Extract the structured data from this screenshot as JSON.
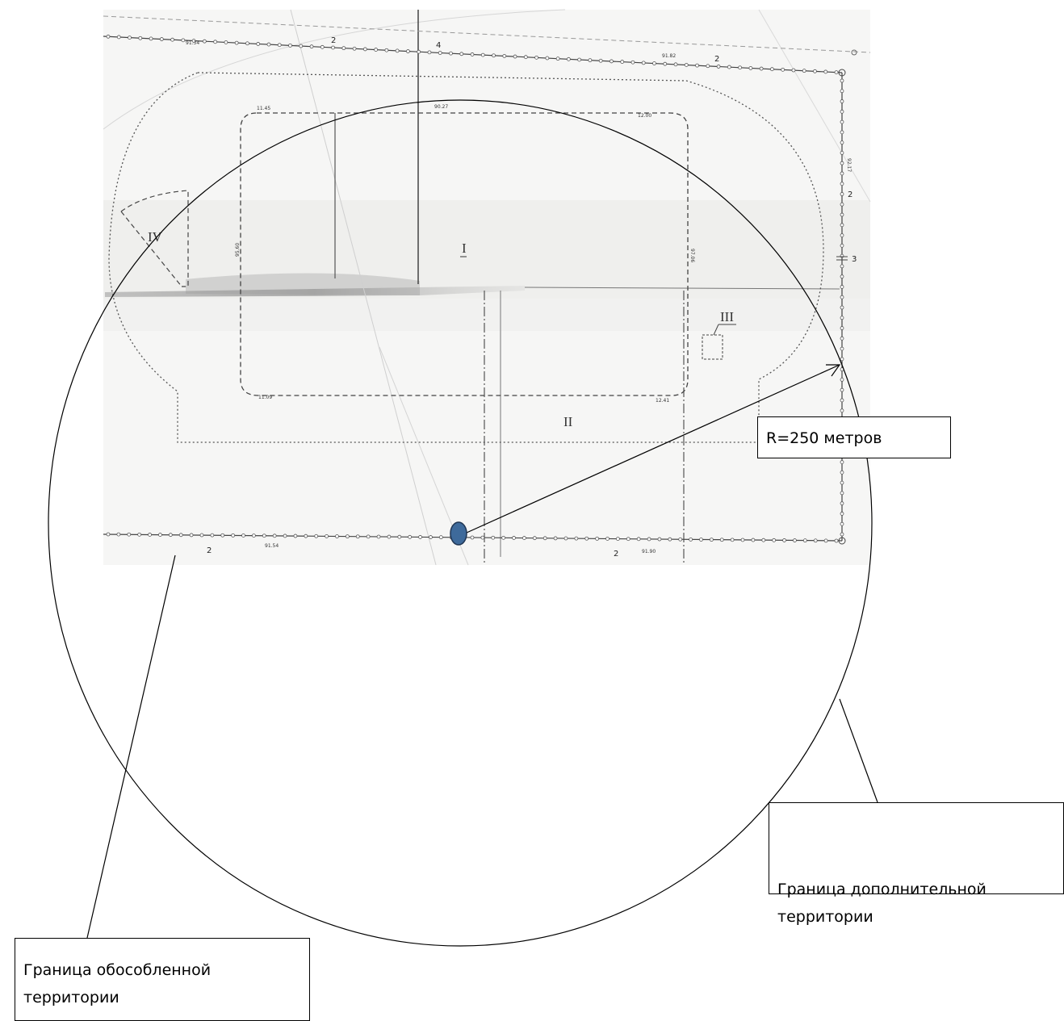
{
  "zones": {
    "zone_1": "I",
    "zone_2": "II",
    "zone_3": "III",
    "zone_4": "IV"
  },
  "plan_numbers": {
    "top_left_2": "2",
    "top_4": "4",
    "top_right_2": "2",
    "right_2": "2",
    "right_3": "3",
    "bottom_left_2": "2",
    "bottom_right_2": "2"
  },
  "elevations": {
    "top_left": "91.34",
    "top_right": "91.82",
    "inner_top_left": "11.45",
    "inner_top_mid": "90.27",
    "inner_top_right": "12.00",
    "inner_left": "95.60",
    "inner_right": "97.06",
    "inner_bottom_left": "11.09",
    "inner_bottom_right": "12.41",
    "bottom_left": "91.54",
    "bottom_right": "91.90",
    "right_upper": "92.17"
  },
  "labels": {
    "radius": "R=250 метров",
    "additional_territory": "Граница дополнительной территории",
    "separate_territory": "Граница обособленной территории"
  },
  "colors": {
    "center_marker": "#3E6A9B",
    "marker_outline": "#1F3553"
  }
}
